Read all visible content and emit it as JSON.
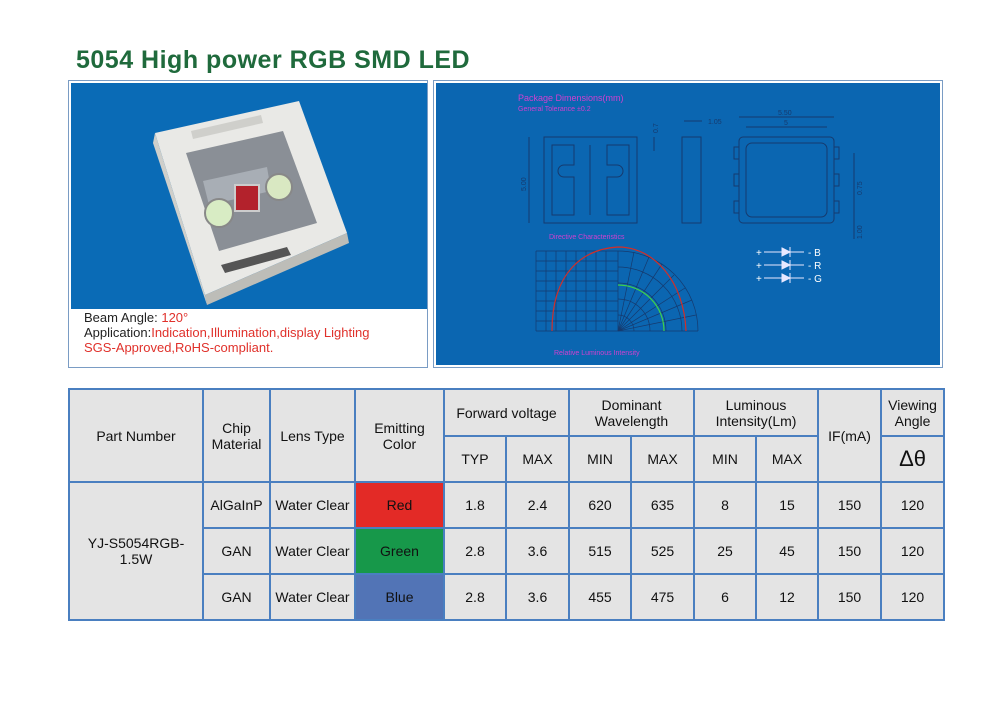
{
  "title": "5054 High power RGB SMD LED",
  "product": {
    "beam_angle_label": "Beam Angle:",
    "beam_angle": "120°",
    "application_label": "Application:",
    "application": "Indication,Illumination,display Lighting",
    "certifications": "SGS-Approved,RoHS-compliant."
  },
  "drawing": {
    "title": "Package Dimensions(mm)",
    "tolerance": "General Tolerance ±0.2",
    "dim_top": "0.7",
    "dim_side": "1.05",
    "dim_outer": "5.50",
    "dim_inner": "5",
    "dim_height": "5.00",
    "dim_pad": "0.75",
    "dim_pitch": "1.00",
    "directive_title": "Directive Characteristics",
    "intensity_caption": "Relative Luminous Intensity",
    "pins": [
      "B",
      "R",
      "G"
    ]
  },
  "table": {
    "headers": {
      "part_number": "Part Number",
      "chip_material": "Chip Material",
      "lens_type": "Lens Type",
      "emitting_color": "Emitting Color",
      "forward_voltage": "Forward voltage",
      "dominant_wavelength": "Dominant Wavelength",
      "luminous_intensity": "Luminous Intensity(Lm)",
      "if": "IF(mA)",
      "viewing_angle": "Viewing Angle",
      "sub": [
        "TYP",
        "MAX",
        "MIN",
        "MAX",
        "MIN",
        "MAX"
      ],
      "angle_symbol": "Δθ"
    },
    "part_number": "YJ-S5054RGB-1.5W",
    "rows": [
      [
        "AlGaInP",
        "Water Clear",
        "Red",
        "1.8",
        "2.4",
        "620",
        "635",
        "8",
        "15",
        "150",
        "120"
      ],
      [
        "GAN",
        "Water Clear",
        "Green",
        "2.8",
        "3.6",
        "515",
        "525",
        "25",
        "45",
        "150",
        "120"
      ],
      [
        "GAN",
        "Water Clear",
        "Blue",
        "2.8",
        "3.6",
        "455",
        "475",
        "6",
        "12",
        "150",
        "120"
      ]
    ]
  }
}
